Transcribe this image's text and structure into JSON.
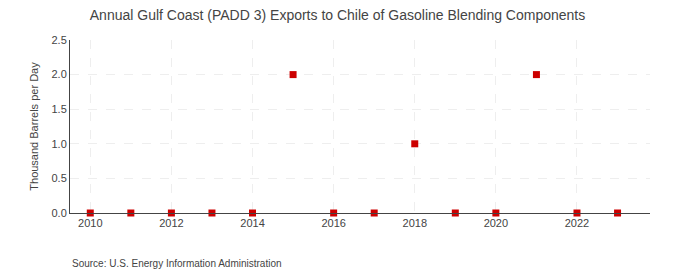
{
  "chart_data": {
    "type": "scatter",
    "title": "Annual Gulf Coast (PADD 3) Exports to Chile of Gasoline Blending Components",
    "ylabel": "Thousand Barrels per Day",
    "source": "Source: U.S. Energy Information Administration",
    "x": [
      2010,
      2011,
      2012,
      2013,
      2014,
      2015,
      2016,
      2017,
      2018,
      2019,
      2020,
      2021,
      2022,
      2023
    ],
    "values": [
      0.0,
      0.0,
      0.0,
      0.0,
      0.0,
      2.0,
      0.0,
      0.0,
      1.0,
      0.0,
      0.0,
      2.0,
      0.0,
      0.0
    ],
    "color": "#cc0000",
    "marker": "square",
    "xlim": [
      2009.5,
      2023.8
    ],
    "ylim": [
      0.0,
      2.5
    ],
    "xticks": [
      2010,
      2012,
      2014,
      2016,
      2018,
      2020,
      2022
    ],
    "yticks": [
      {
        "value": 0,
        "label": "0.0"
      },
      0.5,
      {
        "value": 1,
        "label": "1.0"
      },
      1.5,
      {
        "value": 2,
        "label": "2.0"
      },
      2.5
    ],
    "grid": true
  }
}
